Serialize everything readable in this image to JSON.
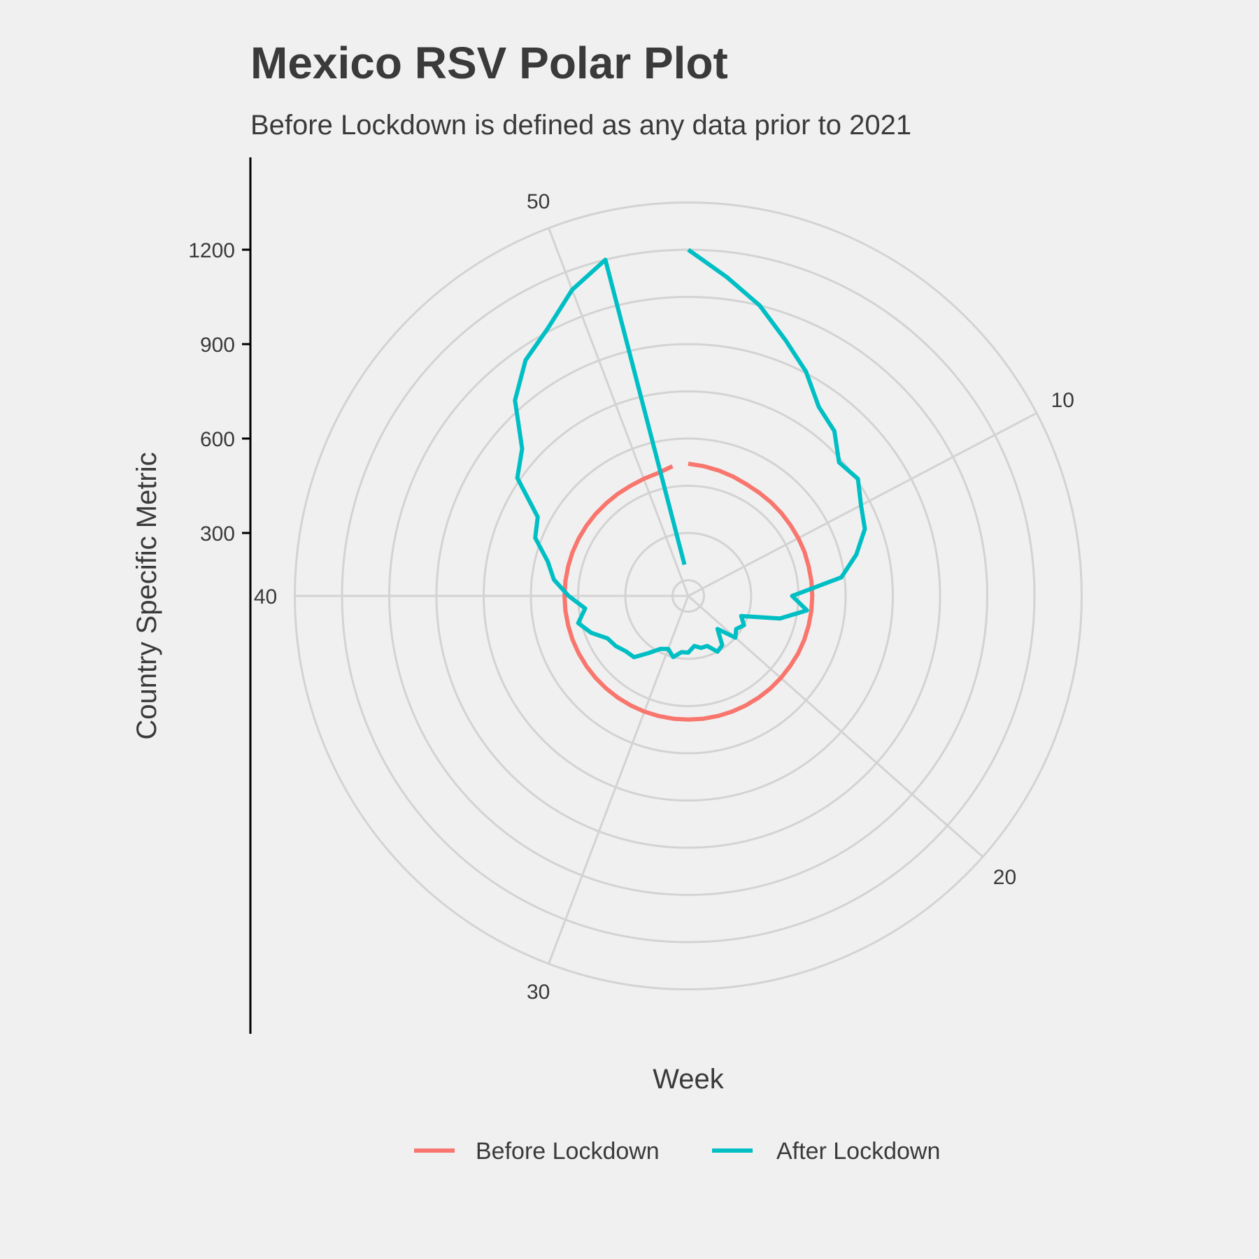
{
  "chart_data": {
    "type": "line",
    "coordinate_system": "polar",
    "title": "Mexico RSV Polar Plot",
    "subtitle": "Before Lockdown is defined as any data prior to 2021",
    "xlabel": "Week",
    "ylabel": "Country Specific Metric",
    "theta_ticks": [
      "10",
      "20",
      "30",
      "40",
      "50"
    ],
    "theta_range": [
      1,
      53
    ],
    "r_ticks": [
      "300",
      "600",
      "900",
      "1200"
    ],
    "r_range": [
      100,
      1350
    ],
    "grid": true,
    "legend_position": "bottom",
    "series": [
      {
        "name": "Before Lockdown",
        "color": "#F8766D",
        "x": [
          1,
          2,
          3,
          4,
          5,
          6,
          7,
          8,
          9,
          10,
          11,
          12,
          13,
          14,
          15,
          16,
          17,
          18,
          19,
          20,
          21,
          22,
          23,
          24,
          25,
          26,
          27,
          28,
          29,
          30,
          31,
          32,
          33,
          34,
          35,
          36,
          37,
          38,
          39,
          40,
          41,
          42,
          43,
          44,
          45,
          46,
          47,
          48,
          49,
          50,
          51,
          52
        ],
        "values": [
          520,
          515,
          510,
          505,
          500,
          498,
          497,
          496,
          495,
          495,
          495,
          494,
          494,
          494,
          494,
          494,
          494,
          494,
          493,
          493,
          493,
          493,
          493,
          493,
          493,
          493,
          493,
          493,
          493,
          493,
          493,
          493,
          493,
          493,
          493,
          493,
          493,
          493,
          493,
          493,
          493,
          493,
          493,
          493,
          493,
          493,
          493,
          494,
          495,
          498,
          502,
          515
        ]
      },
      {
        "name": "After Lockdown",
        "color": "#00BFC4",
        "x": [
          1,
          2,
          3,
          4,
          5,
          6,
          7,
          8,
          9,
          10,
          11,
          12,
          13,
          14,
          15,
          16,
          17,
          18,
          19,
          20,
          21,
          22,
          23,
          24,
          25,
          26,
          27,
          28,
          29,
          30,
          31,
          32,
          33,
          34,
          35,
          36,
          37,
          38,
          39,
          40,
          41,
          42,
          43,
          44,
          45,
          46,
          47,
          48,
          49,
          50,
          51,
          52
        ],
        "values": [
          1200,
          1120,
          1050,
          970,
          905,
          830,
          800,
          740,
          755,
          720,
          700,
          650,
          590,
          430,
          480,
          400,
          280,
          300,
          285,
          300,
          240,
          290,
          300,
          270,
          270,
          260,
          280,
          280,
          300,
          280,
          290,
          320,
          360,
          365,
          380,
          390,
          430,
          460,
          430,
          480,
          530,
          560,
          620,
          640,
          760,
          805,
          930,
          1010,
          1060,
          1140,
          1200,
          200
        ]
      }
    ]
  }
}
